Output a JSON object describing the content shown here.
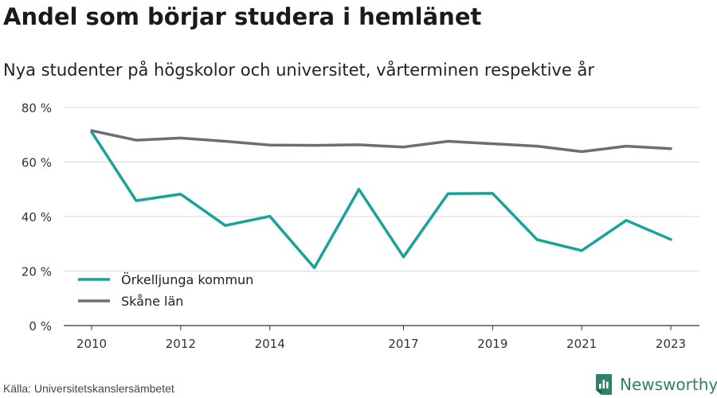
{
  "title": "Andel som börjar studera i hemlänet",
  "subtitle": "Nya studenter på högskolor och universitet, vårterminen respektive år",
  "source": "Källa: Universitetskanslersämbetet",
  "brand": {
    "name": "Newsworthy",
    "icon": "newsworthy-logo-icon",
    "color": "#2f7f6b"
  },
  "chart_data": {
    "type": "line",
    "x": [
      2010,
      2011,
      2012,
      2013,
      2014,
      2015,
      2016,
      2017,
      2018,
      2019,
      2020,
      2021,
      2022,
      2023
    ],
    "x_tick_labels": [
      "2010",
      "2012",
      "2014",
      "2017",
      "2019",
      "2021",
      "2023"
    ],
    "x_tick_values": [
      2010,
      2012,
      2014,
      2017,
      2019,
      2021,
      2023
    ],
    "y_ticks": [
      0,
      20,
      40,
      60,
      80
    ],
    "y_tick_labels": [
      "0 %",
      "20 %",
      "40 %",
      "60 %",
      "80 %"
    ],
    "ylim": [
      0,
      80
    ],
    "xlim": [
      2010,
      2023
    ],
    "grid": true,
    "legend_position": "bottom-left",
    "series": [
      {
        "name": "Örkelljunga kommun",
        "color": "#17a398",
        "values": [
          71,
          45.8,
          48.2,
          36.7,
          40.1,
          21.2,
          50,
          25.2,
          48.4,
          48.5,
          31.5,
          27.5,
          38.6,
          31.6
        ]
      },
      {
        "name": "Skåne län",
        "color": "#6e6d73",
        "values": [
          71.5,
          68,
          68.8,
          67.6,
          66.2,
          66.1,
          66.3,
          65.5,
          67.6,
          66.7,
          65.8,
          63.8,
          65.8,
          64.9
        ]
      }
    ]
  }
}
